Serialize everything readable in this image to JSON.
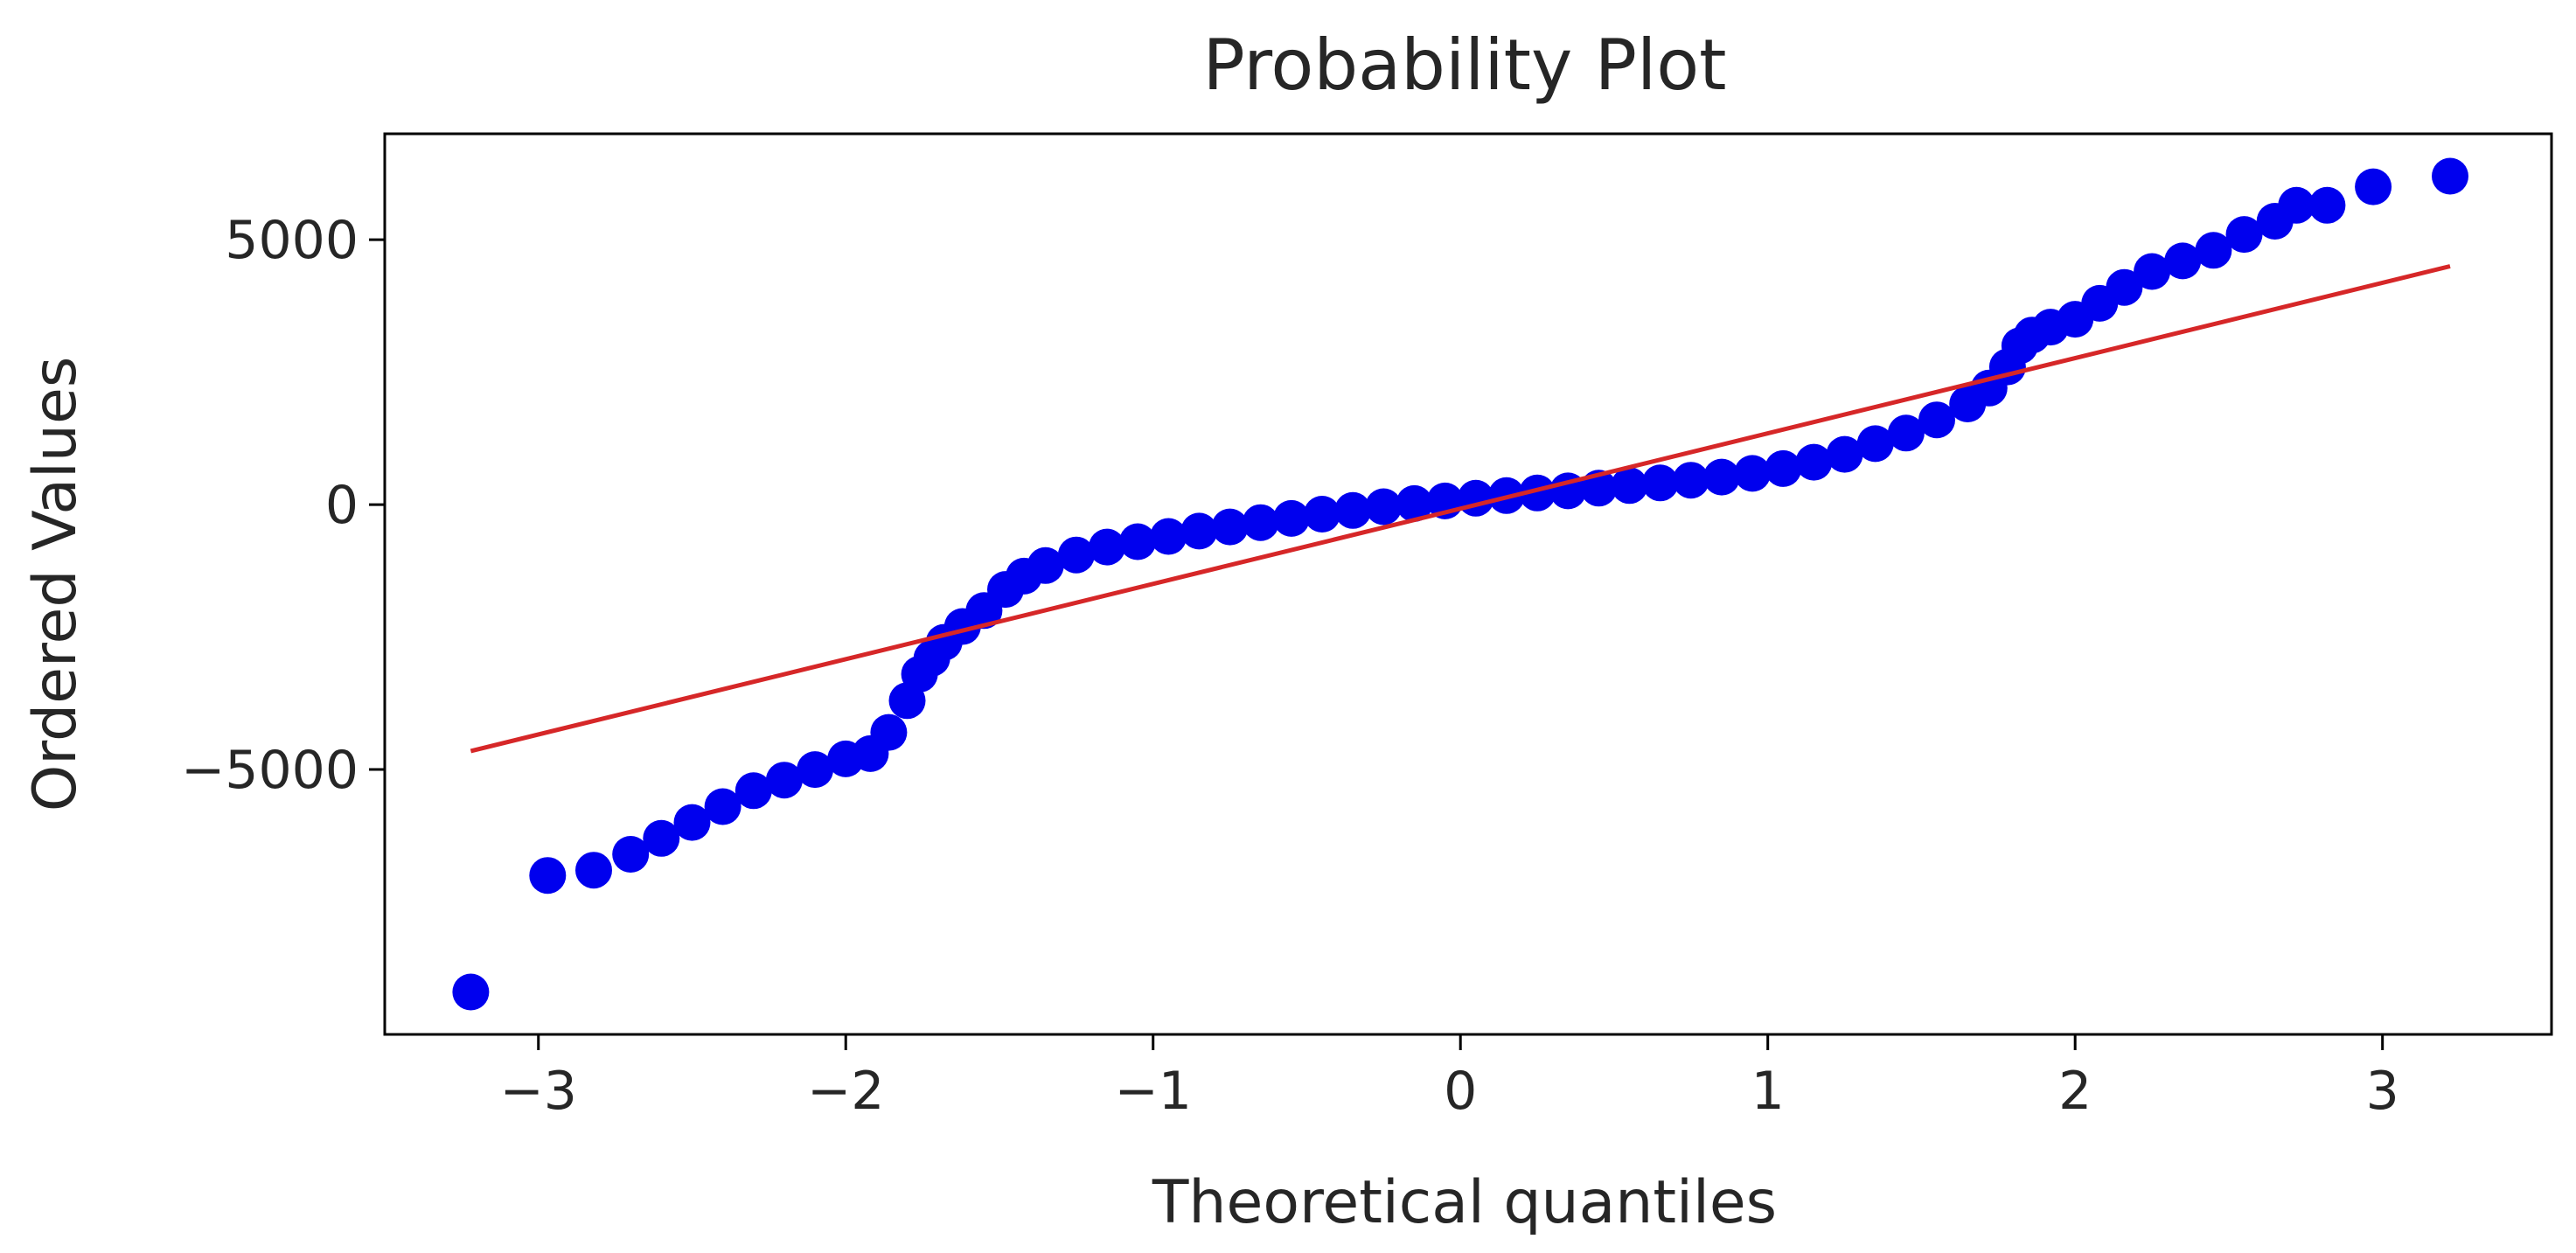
{
  "chart_data": {
    "type": "scatter",
    "title": "Probability Plot",
    "xlabel": "Theoretical quantiles",
    "ylabel": "Ordered Values",
    "xlim": [
      -3.5,
      3.55
    ],
    "ylim": [
      -10000,
      7000
    ],
    "x_ticks": [
      -3,
      -2,
      -1,
      0,
      1,
      2,
      3
    ],
    "y_ticks": [
      -5000,
      0,
      5000
    ],
    "x_tick_labels": [
      "−3",
      "−2",
      "−1",
      "0",
      "1",
      "2",
      "3"
    ],
    "y_tick_labels": [
      "−5000",
      "0",
      "5000"
    ],
    "grid": false,
    "colors": {
      "points": "#0000ee",
      "fit_line": "#d62728"
    },
    "series": [
      {
        "type": "scatter",
        "x": [
          -3.22,
          -2.97,
          -2.82,
          -2.7,
          -2.6,
          -2.5,
          -2.4,
          -2.3,
          -2.2,
          -2.1,
          -2.0,
          -1.92,
          -1.86,
          -1.8,
          -1.76,
          -1.72,
          -1.68,
          -1.62,
          -1.55,
          -1.48,
          -1.42,
          -1.35,
          -1.25,
          -1.15,
          -1.05,
          -0.95,
          -0.85,
          -0.75,
          -0.65,
          -0.55,
          -0.45,
          -0.35,
          -0.25,
          -0.15,
          -0.05,
          0.05,
          0.15,
          0.25,
          0.35,
          0.45,
          0.55,
          0.65,
          0.75,
          0.85,
          0.95,
          1.05,
          1.15,
          1.25,
          1.35,
          1.45,
          1.55,
          1.65,
          1.72,
          1.78,
          1.82,
          1.86,
          1.92,
          2.0,
          2.08,
          2.16,
          2.25,
          2.35,
          2.45,
          2.55,
          2.65,
          2.72,
          2.82,
          2.97,
          3.22
        ],
        "y": [
          -9200,
          -7000,
          -6900,
          -6600,
          -6300,
          -6000,
          -5700,
          -5400,
          -5200,
          -5000,
          -4800,
          -4700,
          -4300,
          -3700,
          -3200,
          -2900,
          -2600,
          -2300,
          -2000,
          -1600,
          -1350,
          -1150,
          -950,
          -800,
          -700,
          -600,
          -500,
          -420,
          -340,
          -260,
          -180,
          -110,
          -40,
          20,
          70,
          120,
          170,
          220,
          260,
          310,
          360,
          410,
          460,
          520,
          590,
          680,
          800,
          950,
          1150,
          1350,
          1600,
          1900,
          2200,
          2600,
          3000,
          3200,
          3350,
          3500,
          3800,
          4100,
          4400,
          4600,
          4800,
          5100,
          5350,
          5650,
          5650,
          6000,
          6200
        ]
      },
      {
        "type": "line",
        "x": [
          -3.22,
          3.22
        ],
        "y": [
          -4650,
          4500
        ]
      }
    ]
  }
}
